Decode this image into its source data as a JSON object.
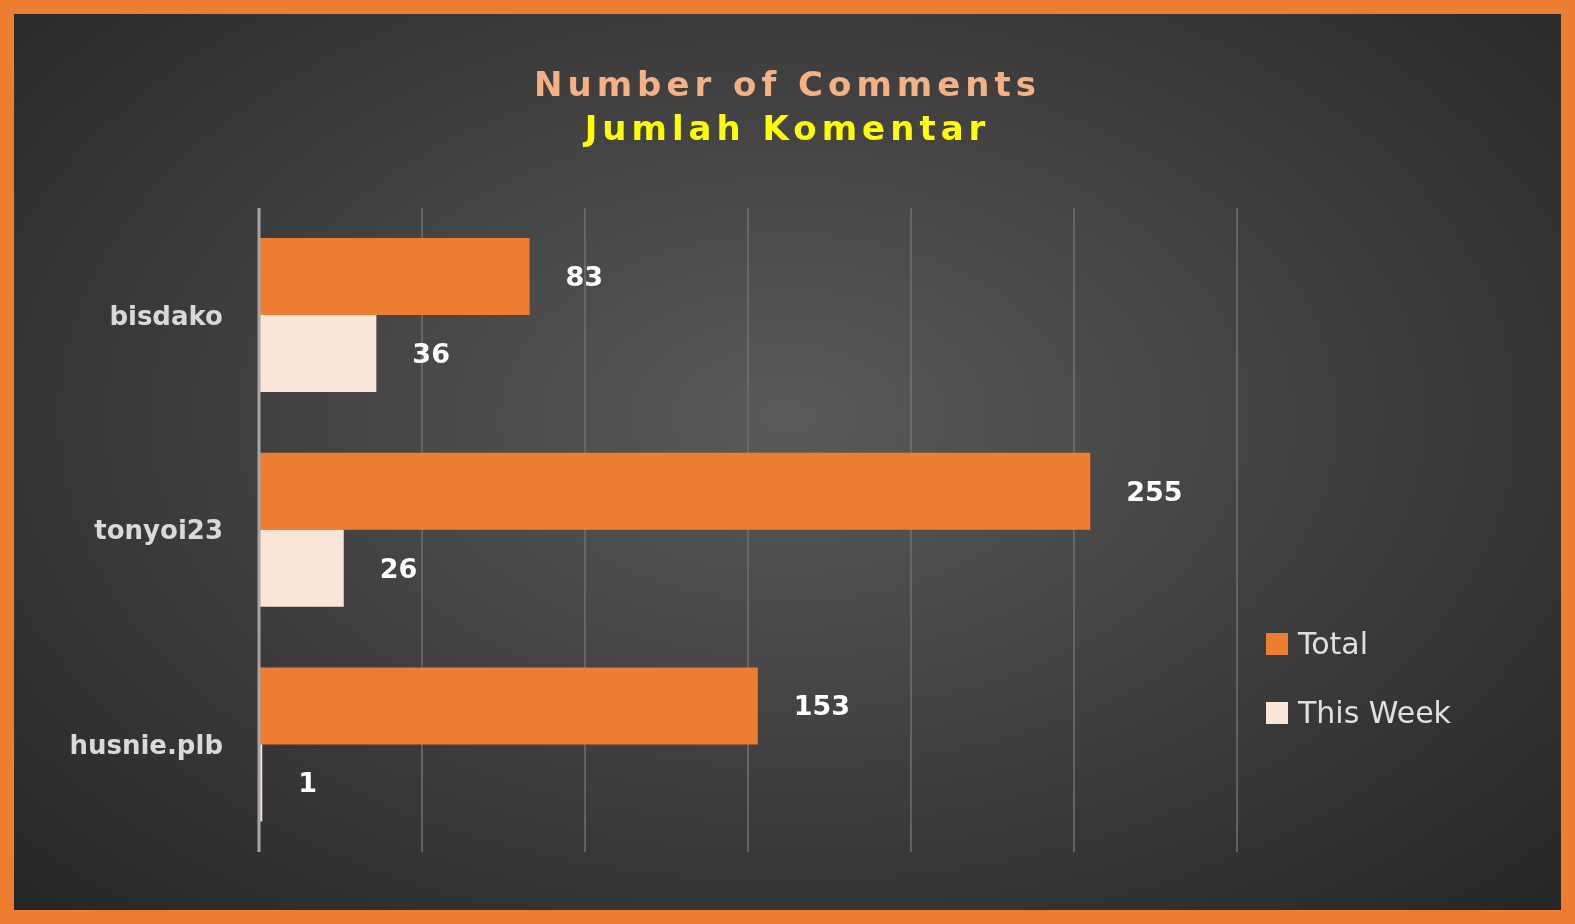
{
  "chart_data": {
    "type": "bar",
    "orientation": "horizontal",
    "title": "Number of Comments",
    "subtitle": "Jumlah Komentar",
    "categories": [
      "bisdako",
      "tonyoi23",
      "husnie.plb"
    ],
    "series": [
      {
        "name": "Total",
        "color": "#ed7d31",
        "values": [
          83,
          255,
          153
        ]
      },
      {
        "name": "This Week",
        "color": "#fbe5d6",
        "values": [
          36,
          26,
          1
        ]
      }
    ],
    "xlim": [
      0,
      300
    ],
    "xticks": [
      {
        "value": 0,
        "label": null
      },
      {
        "value": 50,
        "label": null
      },
      {
        "value": 100,
        "label": null
      },
      {
        "value": 150,
        "label": null
      },
      {
        "value": 200,
        "label": null
      },
      {
        "value": 250,
        "label": null
      },
      {
        "value": 300,
        "label": null
      }
    ],
    "tick_labels": "y",
    "grid": "x",
    "legend": "right",
    "data_labels": true
  }
}
